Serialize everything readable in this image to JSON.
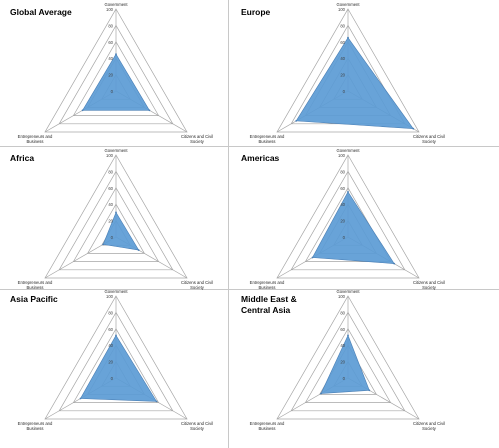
{
  "chart_data": [
    {
      "type": "radar",
      "title": "Global Average",
      "axes": [
        "Government",
        "Citizens and Civil Society",
        "Entrepreneurs and Business"
      ],
      "axis_labels": [
        [
          "Government"
        ],
        [
          "Citizens and Civil",
          "Society"
        ],
        [
          "Entrepreneurs and",
          "Business"
        ]
      ],
      "ticks": [
        "100",
        "80",
        "60",
        "40",
        "20",
        "0"
      ],
      "rlim": [
        0,
        100
      ],
      "values": [
        45,
        47,
        47
      ],
      "color": "#5b9bd5"
    },
    {
      "type": "radar",
      "title": "Europe",
      "axes": [
        "Government",
        "Citizens and Civil Society",
        "Entrepreneurs and Business"
      ],
      "axis_labels": [
        [
          "Government"
        ],
        [
          "Citizens and Civil",
          "Society"
        ],
        [
          "Entrepreneurs and",
          "Business"
        ]
      ],
      "ticks": [
        "100",
        "80",
        "60",
        "40",
        "20",
        "0"
      ],
      "rlim": [
        0,
        100
      ],
      "values": [
        65,
        92,
        73
      ],
      "color": "#5b9bd5"
    },
    {
      "type": "radar",
      "title": "Africa",
      "axes": [
        "Government",
        "Citizens and Civil Society",
        "Entrepreneurs and Business"
      ],
      "axis_labels": [
        [
          "Government"
        ],
        [
          "Citizens and Civil",
          "Society"
        ],
        [
          "Entrepreneurs and",
          "Business"
        ]
      ],
      "ticks": [
        "100",
        "80",
        "60",
        "40",
        "20",
        "0"
      ],
      "rlim": [
        0,
        100
      ],
      "values": [
        30,
        32,
        18
      ],
      "color": "#5b9bd5"
    },
    {
      "type": "radar",
      "title": "Americas",
      "axes": [
        "Government",
        "Citizens and Civil Society",
        "Entrepreneurs and Business"
      ],
      "axis_labels": [
        [
          "Government"
        ],
        [
          "Citizens and Civil",
          "Society"
        ],
        [
          "Entrepreneurs and",
          "Business"
        ]
      ],
      "ticks": [
        "100",
        "80",
        "60",
        "40",
        "20",
        "0"
      ],
      "rlim": [
        0,
        100
      ],
      "values": [
        55,
        65,
        50
      ],
      "color": "#5b9bd5"
    },
    {
      "type": "radar",
      "title": "Asia Pacific",
      "axes": [
        "Government",
        "Citizens and Civil Society",
        "Entrepreneurs and Business"
      ],
      "axis_labels": [
        [
          "Government"
        ],
        [
          "Citizens and Civil",
          "Society"
        ],
        [
          "Entrepreneurs and",
          "Business"
        ]
      ],
      "ticks": [
        "100",
        "80",
        "60",
        "40",
        "20",
        "0"
      ],
      "rlim": [
        0,
        100
      ],
      "values": [
        52,
        57,
        50
      ],
      "color": "#5b9bd5"
    },
    {
      "type": "radar",
      "title": "Middle East &\nCentral Asia",
      "axes": [
        "Government",
        "Citizens and Civil Society",
        "Entrepreneurs and Business"
      ],
      "axis_labels": [
        [
          "Government"
        ],
        [
          "Citizens and Civil",
          "Society"
        ],
        [
          "Entrepreneurs and",
          "Business"
        ]
      ],
      "ticks": [
        "100",
        "80",
        "60",
        "40",
        "20",
        "0"
      ],
      "rlim": [
        0,
        100
      ],
      "values": [
        52,
        30,
        38
      ],
      "color": "#5b9bd5"
    }
  ]
}
